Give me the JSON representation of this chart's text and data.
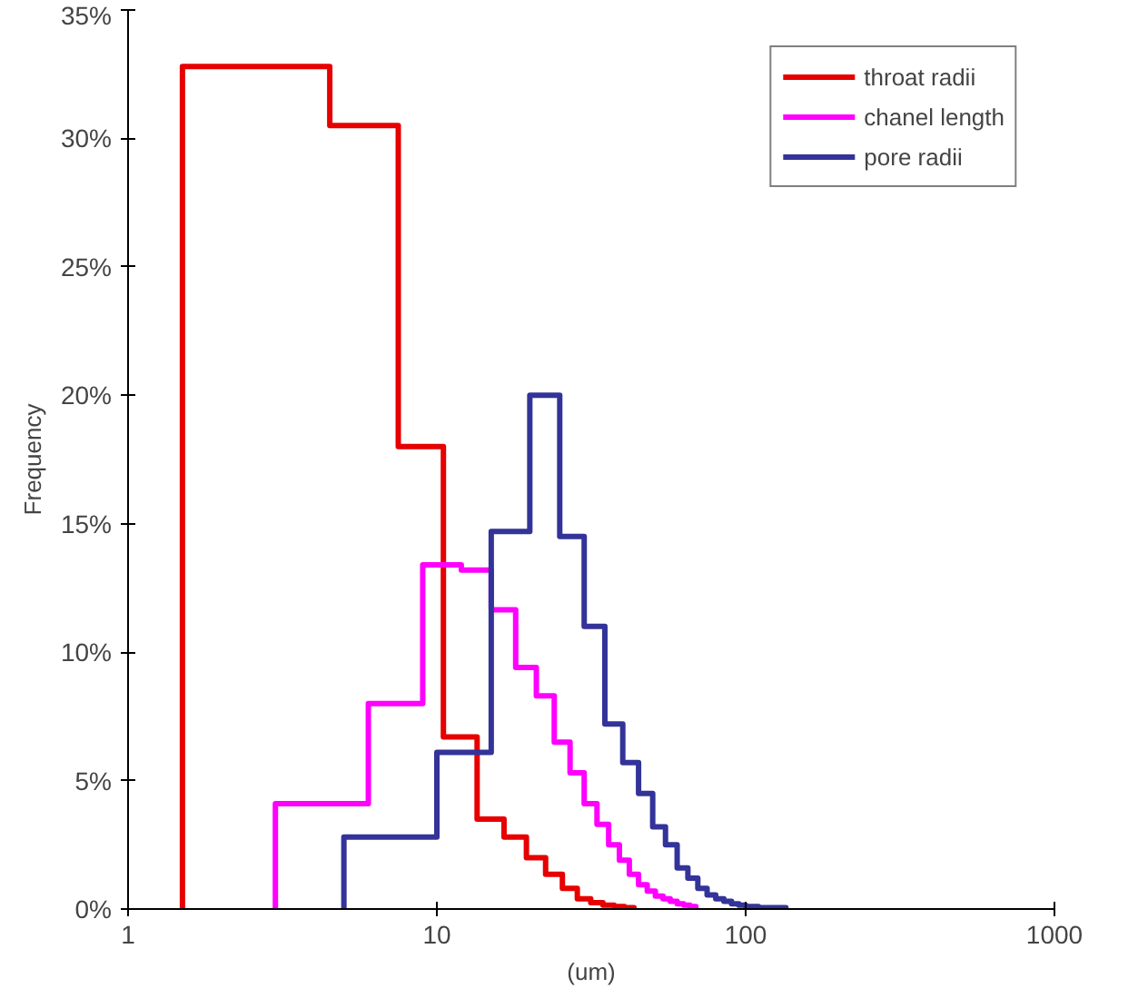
{
  "chart_data": {
    "type": "step",
    "xlabel": "(um)",
    "ylabel": "Frequency",
    "log": "x",
    "grid": false,
    "legend": "top right",
    "line_style": "solid",
    "xlim": [
      1,
      1000
    ],
    "xticks": [
      1,
      10,
      100,
      1000
    ],
    "ylim": [
      0,
      35
    ],
    "yticks": [
      {
        "value": 0,
        "label": "0%"
      },
      {
        "value": 5,
        "label": "5%"
      },
      {
        "value": 10,
        "label": "10%"
      },
      {
        "value": 15,
        "label": "15%"
      },
      {
        "value": 20,
        "label": "20%"
      },
      {
        "value": 25,
        "label": "25%"
      },
      {
        "value": 30,
        "label": "30%"
      },
      {
        "value": 35,
        "label": "35%"
      }
    ],
    "series": [
      {
        "name": "throat radii",
        "color": "#e60000",
        "x": [
          1.5,
          1.5,
          4.5,
          7.5,
          10.5,
          13.5,
          16.5,
          19.5,
          22.5,
          25.5,
          28.5,
          31.5,
          34.5,
          37.5,
          40.5,
          43.5
        ],
        "values": [
          0,
          32.8,
          30.5,
          18.0,
          6.7,
          3.5,
          2.8,
          2.0,
          1.35,
          0.8,
          0.4,
          0.25,
          0.15,
          0.1,
          0.05,
          0
        ]
      },
      {
        "name": "chanel length",
        "color": "#ff00ff",
        "x": [
          3,
          3,
          6,
          9,
          12,
          15,
          18,
          21,
          24,
          27,
          30,
          33,
          36,
          39,
          42,
          45,
          48,
          51,
          54,
          57,
          60,
          63,
          66,
          69
        ],
        "values": [
          0,
          4.1,
          8.0,
          13.4,
          13.2,
          11.65,
          9.4,
          8.3,
          6.5,
          5.3,
          4.1,
          3.3,
          2.5,
          1.9,
          1.35,
          0.95,
          0.7,
          0.5,
          0.4,
          0.3,
          0.2,
          0.15,
          0.1,
          0
        ]
      },
      {
        "name": "pore radii",
        "color": "#333399",
        "x": [
          5,
          5,
          10,
          15,
          20,
          25,
          30,
          35,
          40,
          45,
          50,
          55,
          60,
          65,
          70,
          75,
          80,
          85,
          90,
          95,
          100,
          105,
          110,
          115,
          120,
          125,
          130,
          135
        ],
        "values": [
          0,
          2.8,
          6.1,
          14.7,
          20.0,
          14.5,
          11.0,
          7.2,
          5.7,
          4.5,
          3.2,
          2.5,
          1.6,
          1.2,
          0.8,
          0.55,
          0.4,
          0.3,
          0.2,
          0.15,
          0.1,
          0.1,
          0.05,
          0.05,
          0.05,
          0.05,
          0.05,
          0
        ]
      }
    ]
  }
}
